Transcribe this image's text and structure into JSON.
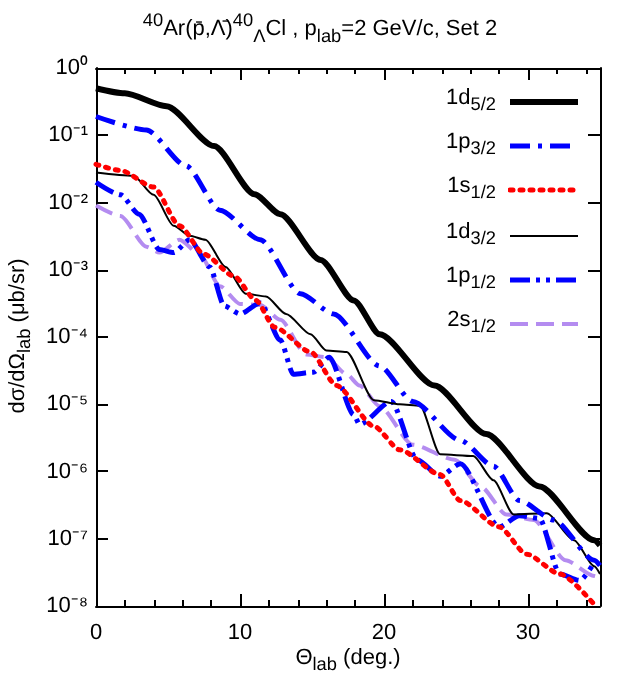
{
  "chart_data": {
    "type": "line",
    "title": "$^{40}$Ar(p̄,Λ̄)$^{40}$$_{Λ}$Cl , p$_{lab}$=2 GeV/c, Set 2",
    "xlabel": "Θ$_{lab}$ (deg.)",
    "ylabel": "dσ/dΩ$_{lab}$ (μb/sr)",
    "series": [
      {
        "name": "1d$_{5/2}$",
        "color": "#000000",
        "line_style": "solid",
        "x": [
          0,
          2,
          4.9,
          8.2,
          11,
          12.8,
          15.6,
          17.9,
          19.7,
          23.5,
          27.1,
          30.8,
          34.6,
          35
        ],
        "values": [
          0.5,
          0.42,
          0.27,
          0.069,
          0.0133,
          0.0067,
          0.0014,
          0.00035,
          0.00011,
          1.9e-05,
          3.6e-06,
          6e-07,
          9.5e-08,
          8e-08
        ]
      },
      {
        "name": "1p$_{3/2}$",
        "color": "#0000ff",
        "line_style": "dashed",
        "x": [
          0,
          3.5,
          6.25,
          8.6,
          11.4,
          14.2,
          16.5,
          19.7,
          22,
          25.3,
          27.6,
          29.4,
          31.8,
          34.6,
          35
        ],
        "values": [
          0.19,
          0.12,
          0.035,
          0.0077,
          0.0028,
          0.00044,
          0.00022,
          3.7e-05,
          1.1e-05,
          2.9e-06,
          1.2e-06,
          3.7e-07,
          1.9e-07,
          4.8e-08,
          4e-08
        ]
      },
      {
        "name": "1s$_{1/2}$",
        "color": "#ff0000",
        "line_style": "dotted",
        "x": [
          0,
          1.7,
          4,
          5.8,
          7.5,
          9.6,
          11.1,
          12.4,
          14.9,
          16.7,
          19.3,
          21.1,
          23.9,
          25.3,
          28,
          29.9,
          32.2,
          34.6
        ],
        "values": [
          0.037,
          0.03,
          0.017,
          0.0045,
          0.0017,
          0.0008,
          0.00035,
          0.00014,
          6e-05,
          1.9e-05,
          4.7e-06,
          2.1e-06,
          9e-07,
          3.7e-07,
          1.5e-07,
          5.9e-08,
          3e-08,
          1.05e-08
        ]
      },
      {
        "name": "1d$_{3/2}$",
        "color": "#000000",
        "line_style": "solid",
        "x": [
          0,
          2.6,
          4,
          5.4,
          6.5,
          7.6,
          9,
          10.4,
          11.8,
          13.2,
          14.9,
          16,
          17.4,
          19.3,
          21.1,
          22.5,
          23.9,
          26.2,
          27.6,
          29,
          31.3,
          33.2,
          34.6,
          35
        ],
        "values": [
          0.028,
          0.025,
          0.013,
          0.0045,
          0.0032,
          0.0028,
          0.0011,
          0.00044,
          0.0004,
          0.00022,
          0.00011,
          6.3e-05,
          6e-05,
          1.15e-05,
          1e-05,
          9.5e-06,
          1.8e-06,
          1.7e-06,
          7.4e-07,
          2.3e-07,
          2.4e-07,
          9.5e-08,
          3.9e-08,
          3e-08
        ]
      },
      {
        "name": "1p$_{1/2}$",
        "color": "#0000ff",
        "line_style": "dashed",
        "x": [
          0,
          1.7,
          3,
          4.4,
          5.4,
          6.5,
          7.9,
          8.9,
          10,
          11.4,
          12.8,
          13.7,
          15.1,
          16.2,
          17.9,
          18.3,
          20.5,
          22.3,
          23.9,
          25.3,
          28,
          29.4,
          30.8,
          32.2,
          33.6,
          34.7
        ],
        "values": [
          0.02,
          0.013,
          0.0067,
          0.002,
          0.0018,
          0.0028,
          0.0011,
          0.00029,
          0.00022,
          0.00032,
          9e-05,
          2.8e-05,
          3e-05,
          5e-05,
          7e-06,
          5e-06,
          1.1e-05,
          1.5e-06,
          8.5e-07,
          1.3e-06,
          1.5e-07,
          2.2e-07,
          2e-07,
          3e-08,
          2.4e-08,
          4.8e-08
        ]
      },
      {
        "name": "2s$_{1/2}$",
        "color": "#b48cf0",
        "line_style": "dashed",
        "x": [
          0,
          1.7,
          3.5,
          4.4,
          5.8,
          7.2,
          8.6,
          10,
          11.4,
          12.8,
          14.6,
          16,
          17.4,
          18.3,
          19.7,
          22,
          24.9,
          26.7,
          28.5,
          30.4,
          32.6,
          34.6,
          35
        ],
        "values": [
          0.009,
          0.0063,
          0.0022,
          0.0018,
          0.0028,
          0.0017,
          0.00057,
          0.00031,
          0.0003,
          0.00018,
          5.5e-05,
          5e-05,
          2.8e-05,
          1.9e-05,
          9.3e-06,
          2.5e-06,
          1.5e-06,
          6e-07,
          2.3e-07,
          1.9e-07,
          4.8e-08,
          2.8e-08,
          2.6e-08
        ]
      }
    ],
    "xlim": [
      0,
      35
    ],
    "xticks": [
      0,
      10,
      20,
      30
    ],
    "ylim": [
      1e-08,
      1
    ],
    "log": "y",
    "yticks": [
      {
        "value": 1e-08,
        "label": "10⁻⁸"
      },
      {
        "value": 1e-07,
        "label": "10⁻⁷"
      },
      {
        "value": 1e-06,
        "label": "10⁻⁶"
      },
      {
        "value": 1e-05,
        "label": "10⁻⁵"
      },
      {
        "value": 0.0001,
        "label": "10⁻⁴"
      },
      {
        "value": 0.001,
        "label": "10⁻³"
      },
      {
        "value": 0.01,
        "label": "10⁻²"
      },
      {
        "value": 0.1,
        "label": "10⁻¹"
      },
      {
        "value": 1,
        "label": "10⁰"
      }
    ],
    "grid": false,
    "legend": "top right",
    "marker": "none"
  }
}
